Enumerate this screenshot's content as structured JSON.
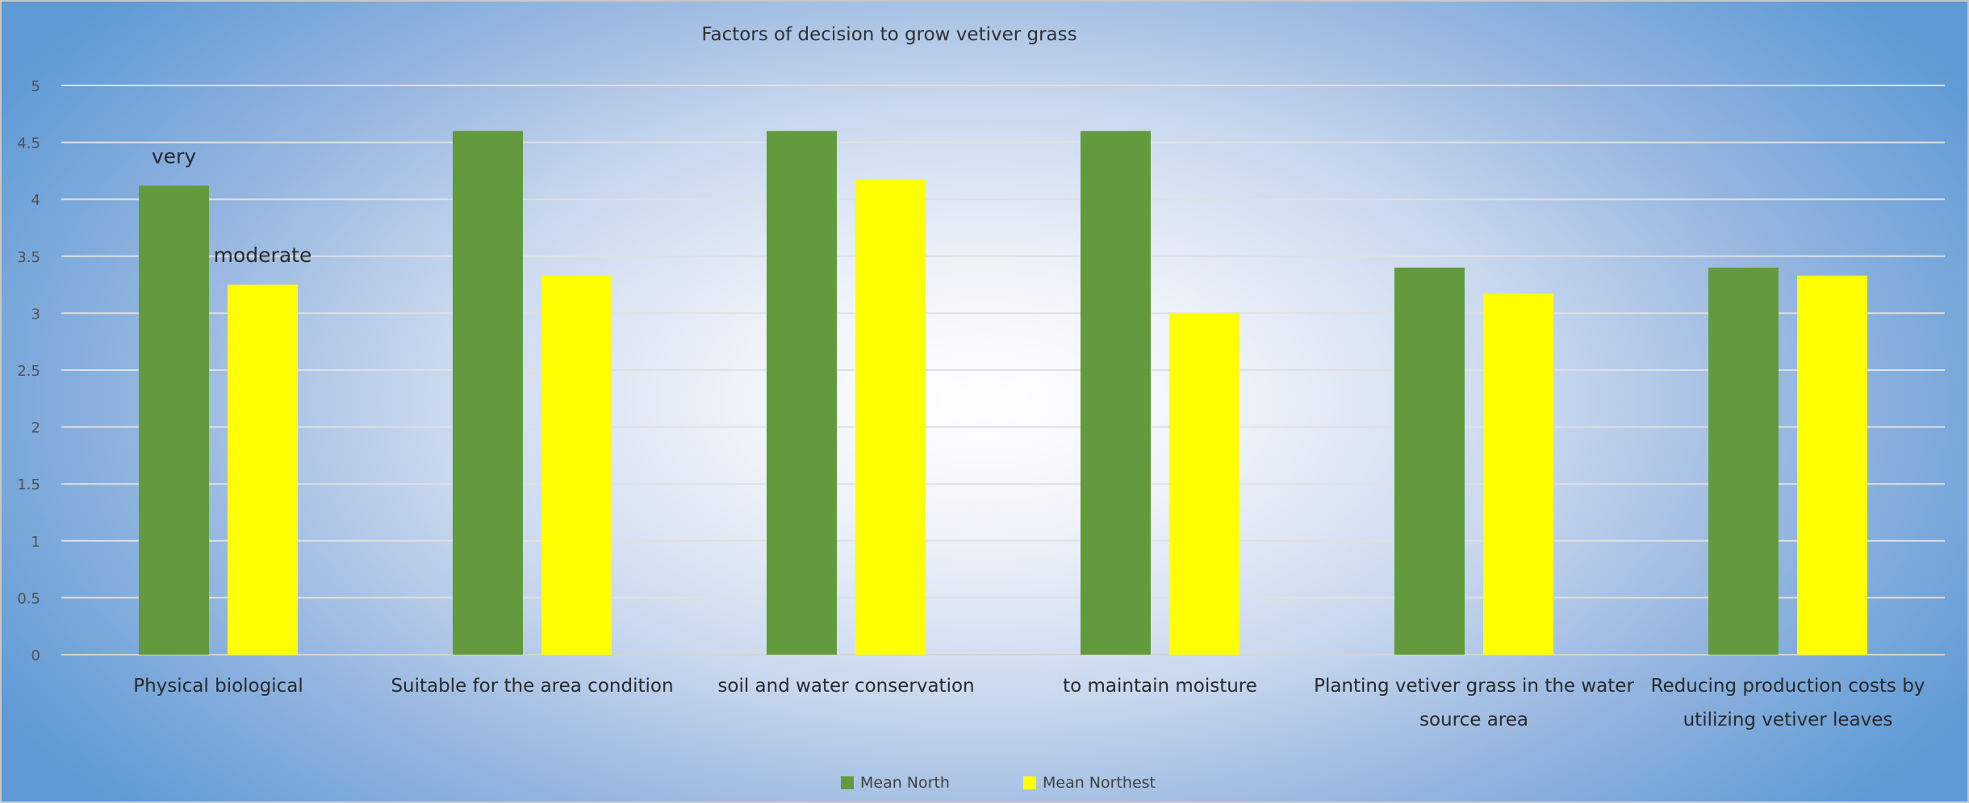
{
  "chart_data": {
    "type": "bar",
    "title": "Factors of decision to grow vetiver grass",
    "categories": [
      [
        "Physical biological"
      ],
      [
        "Suitable for the area condition"
      ],
      [
        "soil and water conservation"
      ],
      [
        "to maintain moisture"
      ],
      [
        "Planting vetiver grass in the water",
        "source area"
      ],
      [
        "Reducing production costs by",
        "utilizing vetiver leaves"
      ]
    ],
    "series": [
      {
        "name": "Mean North",
        "color": "#629a3d",
        "values": [
          4.12,
          4.6,
          4.6,
          4.6,
          3.4,
          3.4
        ]
      },
      {
        "name": "Mean Northest",
        "color": "#ffff00",
        "values": [
          3.25,
          3.33,
          4.17,
          3.0,
          3.17,
          3.33
        ]
      }
    ],
    "ylim": [
      0,
      5
    ],
    "yticks": [
      "0",
      "0.5",
      "1",
      "1.5",
      "2",
      "2.5",
      "3",
      "3.5",
      "4",
      "4.5",
      "5"
    ],
    "grid": true,
    "legend_position": "bottom",
    "annotations": [
      {
        "text": "very",
        "series": 0,
        "category": 0
      },
      {
        "text": "moderate",
        "series": 1,
        "category": 0
      }
    ]
  }
}
